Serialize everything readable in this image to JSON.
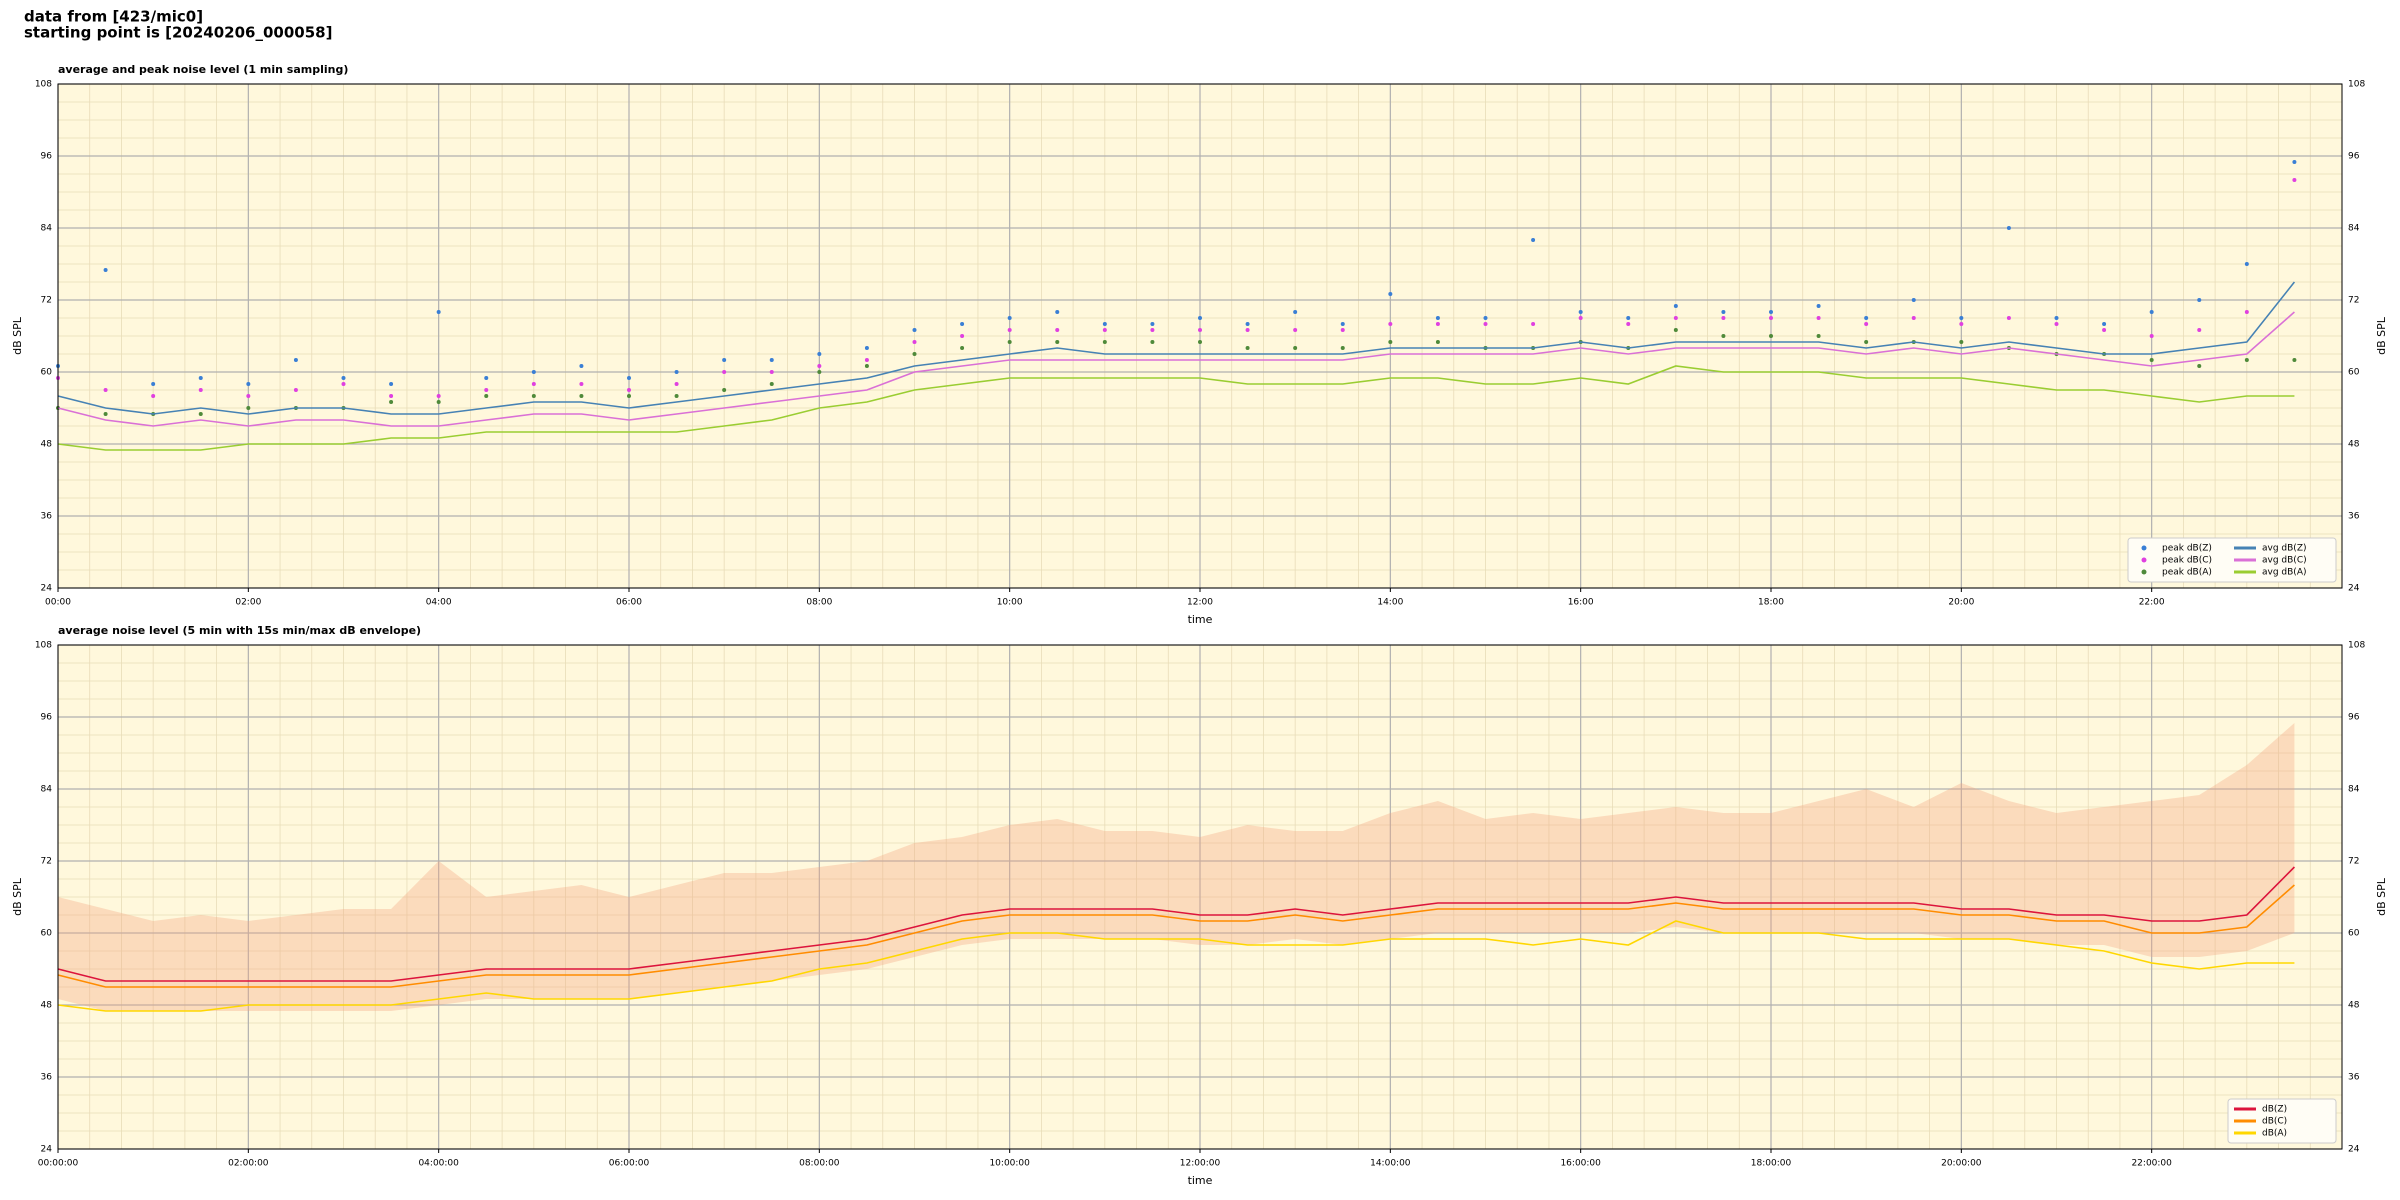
{
  "header": {
    "lines": [
      "data from [423/mic0]",
      "starting point is [20240206_000058]"
    ]
  },
  "chart_data": [
    {
      "type": "line",
      "title": "average and peak noise level (1 min sampling)",
      "xlabel": "time",
      "ylabel": "dB SPL",
      "x": [
        0,
        0.5,
        1,
        1.5,
        2,
        2.5,
        3,
        3.5,
        4,
        4.5,
        5,
        5.5,
        6,
        6.5,
        7,
        7.5,
        8,
        8.5,
        9,
        9.5,
        10,
        10.5,
        11,
        11.5,
        12,
        12.5,
        13,
        13.5,
        14,
        14.5,
        15,
        15.5,
        16,
        16.5,
        17,
        17.5,
        18,
        18.5,
        19,
        19.5,
        20,
        20.5,
        21,
        21.5,
        22,
        22.5,
        23,
        23.5
      ],
      "xlim": [
        0,
        24
      ],
      "ylim": [
        24,
        108
      ],
      "yticks": [
        24,
        36,
        48,
        60,
        72,
        84,
        96,
        108
      ],
      "xticks": [
        {
          "value": 0,
          "label": "00:00"
        },
        {
          "value": 2,
          "label": "02:00"
        },
        {
          "value": 4,
          "label": "04:00"
        },
        {
          "value": 6,
          "label": "06:00"
        },
        {
          "value": 8,
          "label": "08:00"
        },
        {
          "value": 10,
          "label": "10:00"
        },
        {
          "value": 12,
          "label": "12:00"
        },
        {
          "value": 14,
          "label": "14:00"
        },
        {
          "value": 16,
          "label": "16:00"
        },
        {
          "value": 18,
          "label": "18:00"
        },
        {
          "value": 20,
          "label": "20:00"
        },
        {
          "value": 22,
          "label": "22:00"
        }
      ],
      "grid": true,
      "legend": "lower right",
      "background": "#fff8dc",
      "series": [
        {
          "name": "peak dB(Z)",
          "style": "points",
          "color": "#3a7fd5",
          "values": [
            61,
            77,
            58,
            59,
            58,
            62,
            59,
            58,
            70,
            59,
            60,
            61,
            59,
            60,
            62,
            62,
            63,
            64,
            67,
            68,
            69,
            70,
            68,
            68,
            69,
            68,
            70,
            68,
            73,
            69,
            69,
            82,
            70,
            69,
            71,
            70,
            70,
            71,
            69,
            72,
            69,
            84,
            69,
            68,
            70,
            72,
            78,
            95
          ]
        },
        {
          "name": "peak dB(C)",
          "style": "points",
          "color": "#e040e0",
          "values": [
            59,
            57,
            56,
            57,
            56,
            57,
            58,
            56,
            56,
            57,
            58,
            58,
            57,
            58,
            60,
            60,
            61,
            62,
            65,
            66,
            67,
            67,
            67,
            67,
            67,
            67,
            67,
            67,
            68,
            68,
            68,
            68,
            69,
            68,
            69,
            69,
            69,
            69,
            68,
            69,
            68,
            69,
            68,
            67,
            66,
            67,
            70,
            92
          ]
        },
        {
          "name": "peak dB(A)",
          "style": "points",
          "color": "#4f8a3a",
          "values": [
            54,
            53,
            53,
            53,
            54,
            54,
            54,
            55,
            55,
            56,
            56,
            56,
            56,
            56,
            57,
            58,
            60,
            61,
            63,
            64,
            65,
            65,
            65,
            65,
            65,
            64,
            64,
            64,
            65,
            65,
            64,
            64,
            65,
            64,
            67,
            66,
            66,
            66,
            65,
            65,
            65,
            64,
            63,
            63,
            62,
            61,
            62,
            62
          ]
        },
        {
          "name": "avg dB(Z)",
          "style": "line",
          "color": "#4682b4",
          "values": [
            56,
            54,
            53,
            54,
            53,
            54,
            54,
            53,
            53,
            54,
            55,
            55,
            54,
            55,
            56,
            57,
            58,
            59,
            61,
            62,
            63,
            64,
            63,
            63,
            63,
            63,
            63,
            63,
            64,
            64,
            64,
            64,
            65,
            64,
            65,
            65,
            65,
            65,
            64,
            65,
            64,
            65,
            64,
            63,
            63,
            64,
            65,
            75
          ]
        },
        {
          "name": "avg dB(C)",
          "style": "line",
          "color": "#da70d6",
          "values": [
            54,
            52,
            51,
            52,
            51,
            52,
            52,
            51,
            51,
            52,
            53,
            53,
            52,
            53,
            54,
            55,
            56,
            57,
            60,
            61,
            62,
            62,
            62,
            62,
            62,
            62,
            62,
            62,
            63,
            63,
            63,
            63,
            64,
            63,
            64,
            64,
            64,
            64,
            63,
            64,
            63,
            64,
            63,
            62,
            61,
            62,
            63,
            70
          ]
        },
        {
          "name": "avg dB(A)",
          "style": "line",
          "color": "#9acd32",
          "values": [
            48,
            47,
            47,
            47,
            48,
            48,
            48,
            49,
            49,
            50,
            50,
            50,
            50,
            50,
            51,
            52,
            54,
            55,
            57,
            58,
            59,
            59,
            59,
            59,
            59,
            58,
            58,
            58,
            59,
            59,
            58,
            58,
            59,
            58,
            61,
            60,
            60,
            60,
            59,
            59,
            59,
            58,
            57,
            57,
            56,
            55,
            56,
            56
          ]
        }
      ]
    },
    {
      "type": "line",
      "title": "average noise level (5 min with 15s min/max dB envelope)",
      "xlabel": "time",
      "ylabel": "dB SPL",
      "x": [
        0,
        0.5,
        1,
        1.5,
        2,
        2.5,
        3,
        3.5,
        4,
        4.5,
        5,
        5.5,
        6,
        6.5,
        7,
        7.5,
        8,
        8.5,
        9,
        9.5,
        10,
        10.5,
        11,
        11.5,
        12,
        12.5,
        13,
        13.5,
        14,
        14.5,
        15,
        15.5,
        16,
        16.5,
        17,
        17.5,
        18,
        18.5,
        19,
        19.5,
        20,
        20.5,
        21,
        21.5,
        22,
        22.5,
        23,
        23.5
      ],
      "xlim": [
        0,
        24
      ],
      "ylim": [
        24,
        108
      ],
      "yticks": [
        24,
        36,
        48,
        60,
        72,
        84,
        96,
        108
      ],
      "xticks": [
        {
          "value": 0,
          "label": "00:00:00"
        },
        {
          "value": 2,
          "label": "02:00:00"
        },
        {
          "value": 4,
          "label": "04:00:00"
        },
        {
          "value": 6,
          "label": "06:00:00"
        },
        {
          "value": 8,
          "label": "08:00:00"
        },
        {
          "value": 10,
          "label": "10:00:00"
        },
        {
          "value": 12,
          "label": "12:00:00"
        },
        {
          "value": 14,
          "label": "14:00:00"
        },
        {
          "value": 16,
          "label": "16:00:00"
        },
        {
          "value": 18,
          "label": "18:00:00"
        },
        {
          "value": 20,
          "label": "20:00:00"
        },
        {
          "value": 22,
          "label": "22:00:00"
        }
      ],
      "grid": true,
      "legend": "lower right",
      "background": "#fff8dc",
      "envelope": {
        "color": "#f4a582",
        "upper": [
          66,
          64,
          62,
          63,
          62,
          63,
          64,
          64,
          72,
          66,
          67,
          68,
          66,
          68,
          70,
          70,
          71,
          72,
          75,
          76,
          78,
          79,
          77,
          77,
          76,
          78,
          77,
          77,
          80,
          82,
          79,
          80,
          79,
          80,
          81,
          80,
          80,
          82,
          84,
          81,
          85,
          82,
          80,
          81,
          82,
          83,
          88,
          95
        ],
        "lower": [
          49,
          47,
          47,
          47,
          47,
          47,
          47,
          47,
          48,
          49,
          49,
          49,
          49,
          50,
          51,
          52,
          53,
          54,
          56,
          58,
          59,
          59,
          59,
          59,
          58,
          58,
          59,
          58,
          59,
          60,
          60,
          60,
          60,
          60,
          61,
          60,
          60,
          60,
          60,
          60,
          59,
          59,
          58,
          58,
          56,
          56,
          57,
          60
        ]
      },
      "series": [
        {
          "name": "dB(Z)",
          "style": "line",
          "color": "#dc143c",
          "values": [
            54,
            52,
            52,
            52,
            52,
            52,
            52,
            52,
            53,
            54,
            54,
            54,
            54,
            55,
            56,
            57,
            58,
            59,
            61,
            63,
            64,
            64,
            64,
            64,
            63,
            63,
            64,
            63,
            64,
            65,
            65,
            65,
            65,
            65,
            66,
            65,
            65,
            65,
            65,
            65,
            64,
            64,
            63,
            63,
            62,
            62,
            63,
            71
          ]
        },
        {
          "name": "dB(C)",
          "style": "line",
          "color": "#ff8c00",
          "values": [
            53,
            51,
            51,
            51,
            51,
            51,
            51,
            51,
            52,
            53,
            53,
            53,
            53,
            54,
            55,
            56,
            57,
            58,
            60,
            62,
            63,
            63,
            63,
            63,
            62,
            62,
            63,
            62,
            63,
            64,
            64,
            64,
            64,
            64,
            65,
            64,
            64,
            64,
            64,
            64,
            63,
            63,
            62,
            62,
            60,
            60,
            61,
            68
          ]
        },
        {
          "name": "dB(A)",
          "style": "line",
          "color": "#ffd700",
          "values": [
            48,
            47,
            47,
            47,
            48,
            48,
            48,
            48,
            49,
            50,
            49,
            49,
            49,
            50,
            51,
            52,
            54,
            55,
            57,
            59,
            60,
            60,
            59,
            59,
            59,
            58,
            58,
            58,
            59,
            59,
            59,
            58,
            59,
            58,
            62,
            60,
            60,
            60,
            59,
            59,
            59,
            59,
            58,
            57,
            55,
            54,
            55,
            55
          ]
        }
      ]
    }
  ]
}
